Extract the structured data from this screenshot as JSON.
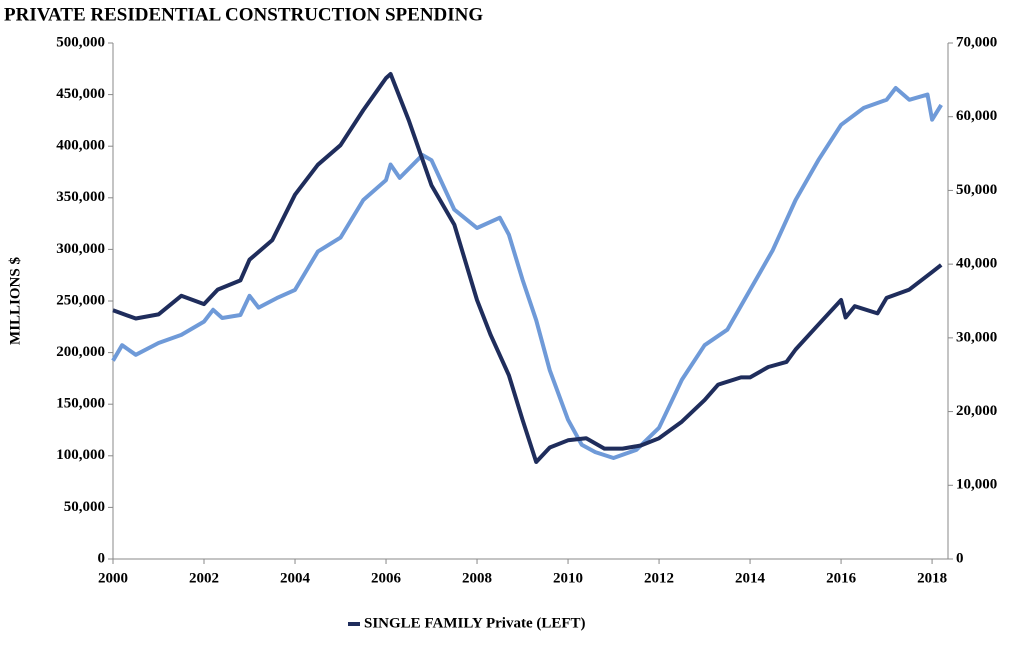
{
  "chart_data": {
    "type": "line",
    "title": "PRIVATE RESIDENTIAL CONSTRUCTION SPENDING",
    "y_label": "MILLIONS $",
    "xlim": [
      2000,
      2018.35
    ],
    "xticks": [
      2000,
      2002,
      2004,
      2006,
      2008,
      2010,
      2012,
      2014,
      2016,
      2018
    ],
    "ylim": [
      0,
      500000
    ],
    "yticks": [
      0,
      {
        "value": 50000,
        "label": "50,000"
      },
      {
        "value": 100000,
        "label": "100,000"
      },
      {
        "value": 150000,
        "label": "150,000"
      },
      {
        "value": 200000,
        "label": "200,000"
      },
      {
        "value": 250000,
        "label": "250,000"
      },
      {
        "value": 300000,
        "label": "300,000"
      },
      {
        "value": 350000,
        "label": "350,000"
      },
      {
        "value": 400000,
        "label": "400,000"
      },
      {
        "value": 450000,
        "label": "450,000"
      },
      {
        "value": 500000,
        "label": "500,000"
      }
    ],
    "y2lim": [
      0,
      70000
    ],
    "y2ticks": [
      0,
      {
        "value": 10000,
        "label": "10,000"
      },
      {
        "value": 20000,
        "label": "20,000"
      },
      {
        "value": 30000,
        "label": "30,000"
      },
      {
        "value": 40000,
        "label": "40,000"
      },
      {
        "value": 50000,
        "label": "50,000"
      },
      {
        "value": 60000,
        "label": "60,000"
      },
      {
        "value": 70000,
        "label": "70,000"
      }
    ],
    "legend": "bottom",
    "series": [
      {
        "name": "SINGLE FAMILY Private (LEFT)",
        "color": "#1f2d5c",
        "x": [
          2000,
          2000.5,
          2001,
          2001.5,
          2002,
          2002.3,
          2002.8,
          2003,
          2003.5,
          2004,
          2004.5,
          2005,
          2005.5,
          2006,
          2006.1,
          2006.5,
          2007,
          2007.5,
          2008,
          2008.3,
          2008.7,
          2009,
          2009.3,
          2009.6,
          2010,
          2010.4,
          2010.8,
          2011.2,
          2011.6,
          2012,
          2012.5,
          2013,
          2013.3,
          2013.8,
          2014,
          2014.4,
          2014.8,
          2015,
          2015.5,
          2016,
          2016.1,
          2016.3,
          2016.8,
          2017,
          2017.5,
          2018,
          2018.2
        ],
        "values": [
          241000,
          233000,
          237000,
          255000,
          247000,
          261000,
          270000,
          290000,
          309000,
          353000,
          382000,
          401000,
          435000,
          466000,
          470000,
          425000,
          362000,
          324000,
          251000,
          217000,
          178000,
          135000,
          94000,
          108000,
          115000,
          117000,
          107000,
          107000,
          110000,
          117000,
          133000,
          154000,
          169000,
          176000,
          176000,
          186000,
          191000,
          203000,
          227000,
          251000,
          234000,
          245000,
          238000,
          253000,
          261000,
          278000,
          285000
        ]
      },
      {
        "color": "#6f9ad8",
        "axis": "y2",
        "x": [
          2000,
          2000.2,
          2000.5,
          2001,
          2001.5,
          2002,
          2002.2,
          2002.4,
          2002.8,
          2003,
          2003.2,
          2003.6,
          2004,
          2004.5,
          2005,
          2005.5,
          2006,
          2006.1,
          2006.3,
          2006.8,
          2007,
          2007.5,
          2008,
          2008.5,
          2008.7,
          2009,
          2009.3,
          2009.6,
          2010,
          2010.3,
          2010.6,
          2011,
          2011.5,
          2012,
          2012.5,
          2013,
          2013.5,
          2014,
          2014.5,
          2015,
          2015.5,
          2016,
          2016.5,
          2017,
          2017.2,
          2017.5,
          2017.9,
          2018,
          2018.2
        ],
        "values": [
          26900,
          29000,
          27700,
          29300,
          30400,
          32200,
          33800,
          32700,
          33100,
          35700,
          34100,
          35400,
          36500,
          41700,
          43600,
          48700,
          51400,
          53500,
          51700,
          54800,
          54100,
          47400,
          44900,
          46300,
          44000,
          37900,
          32400,
          25600,
          18900,
          15500,
          14500,
          13700,
          14800,
          17800,
          24300,
          29000,
          31100,
          36500,
          41900,
          48700,
          54100,
          58900,
          61200,
          62300,
          63900,
          62300,
          63000,
          59600,
          61600
        ]
      }
    ]
  }
}
